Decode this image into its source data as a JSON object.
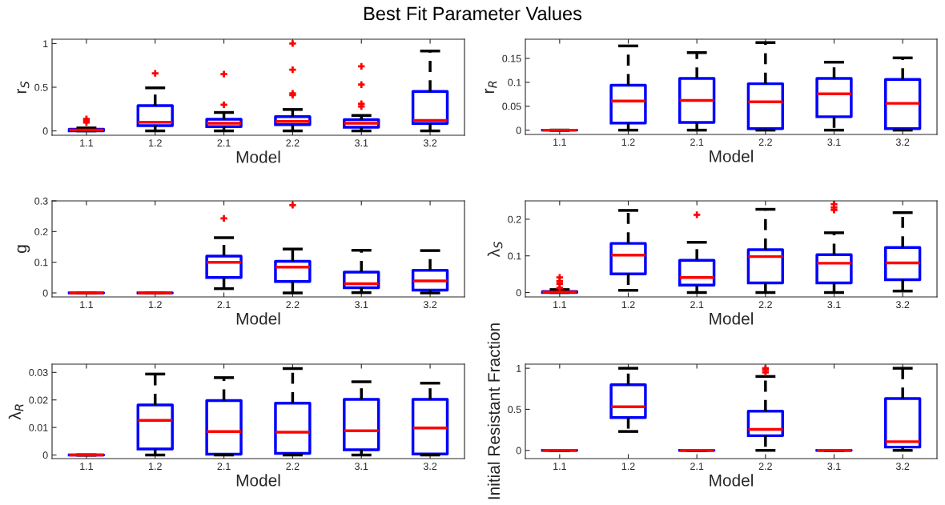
{
  "chart_data": [
    {
      "type": "box",
      "title": "Best Fit Parameter Values",
      "xlabel": "Model",
      "ylabel": "r$_{S}$",
      "categories": [
        "1.1",
        "1.2",
        "2.1",
        "2.2",
        "3.1",
        "3.2"
      ],
      "ylim": [
        -0.05,
        1.05
      ],
      "yticks": [
        0,
        0.5,
        1
      ],
      "boxes": [
        {
          "low": 0,
          "q1": 0,
          "median": 0.01,
          "q3": 0.02,
          "high": 0.034,
          "outliers": [
            0.095,
            0.116,
            0.136
          ]
        },
        {
          "low": 0,
          "q1": 0.061,
          "median": 0.099,
          "q3": 0.289,
          "high": 0.493,
          "outliers": [
            0.66
          ]
        },
        {
          "low": 0,
          "q1": 0.048,
          "median": 0.088,
          "q3": 0.133,
          "high": 0.211,
          "outliers": [
            0.3,
            0.65
          ]
        },
        {
          "low": 0,
          "q1": 0.071,
          "median": 0.109,
          "q3": 0.163,
          "high": 0.245,
          "outliers": [
            0.41,
            0.43,
            0.7,
            1.0
          ]
        },
        {
          "low": 0,
          "q1": 0.041,
          "median": 0.088,
          "q3": 0.129,
          "high": 0.177,
          "outliers": [
            0.28,
            0.31,
            0.53,
            0.74
          ]
        },
        {
          "low": 0,
          "q1": 0.085,
          "median": 0.119,
          "q3": 0.452,
          "high": 0.915
        }
      ]
    },
    {
      "type": "box",
      "xlabel": "Model",
      "ylabel": "r$_{R}$",
      "categories": [
        "1.1",
        "1.2",
        "2.1",
        "2.2",
        "3.1",
        "3.2"
      ],
      "ylim": [
        -0.009,
        0.19
      ],
      "yticks": [
        0,
        0.05,
        0.1,
        0.15
      ],
      "boxes": [
        {
          "low": 0,
          "q1": 0,
          "median": 0,
          "q3": 0,
          "high": 0
        },
        {
          "low": 0,
          "q1": 0.015,
          "median": 0.061,
          "q3": 0.094,
          "high": 0.176
        },
        {
          "low": 0,
          "q1": 0.016,
          "median": 0.062,
          "q3": 0.108,
          "high": 0.162
        },
        {
          "low": 0,
          "q1": 0.003,
          "median": 0.059,
          "q3": 0.097,
          "high": 0.183
        },
        {
          "low": 0,
          "q1": 0.028,
          "median": 0.076,
          "q3": 0.108,
          "high": 0.142
        },
        {
          "low": 0,
          "q1": 0.003,
          "median": 0.056,
          "q3": 0.106,
          "high": 0.151
        }
      ]
    },
    {
      "type": "box",
      "xlabel": "Model",
      "ylabel": "g",
      "categories": [
        "1.1",
        "1.2",
        "2.1",
        "2.2",
        "3.1",
        "3.2"
      ],
      "ylim": [
        -0.013,
        0.3
      ],
      "yticks": [
        0,
        0.1,
        0.2,
        0.3
      ],
      "boxes": [
        {
          "low": 0,
          "q1": 0,
          "median": 0,
          "q3": 0,
          "high": 0
        },
        {
          "low": 0,
          "q1": 0,
          "median": 0,
          "q3": 0,
          "high": 0
        },
        {
          "low": 0.014,
          "q1": 0.05,
          "median": 0.1,
          "q3": 0.12,
          "high": 0.18,
          "outliers": [
            0.243
          ]
        },
        {
          "low": 0,
          "q1": 0.037,
          "median": 0.084,
          "q3": 0.103,
          "high": 0.143,
          "outliers": [
            0.286
          ]
        },
        {
          "low": 0.001,
          "q1": 0.017,
          "median": 0.03,
          "q3": 0.068,
          "high": 0.139
        },
        {
          "low": 0,
          "q1": 0.009,
          "median": 0.039,
          "q3": 0.074,
          "high": 0.138
        }
      ]
    },
    {
      "type": "box",
      "xlabel": "Model",
      "ylabel": "λ$_{S}$",
      "categories": [
        "1.1",
        "1.2",
        "2.1",
        "2.2",
        "3.1",
        "3.2"
      ],
      "ylim": [
        -0.012,
        0.25
      ],
      "yticks": [
        0,
        0.1,
        0.2
      ],
      "boxes": [
        {
          "low": 0,
          "q1": 0,
          "median": 0.001,
          "q3": 0.003,
          "high": 0.008,
          "outliers": [
            0.013,
            0.024,
            0.031,
            0.041
          ]
        },
        {
          "low": 0.006,
          "q1": 0.051,
          "median": 0.102,
          "q3": 0.134,
          "high": 0.224
        },
        {
          "low": 0,
          "q1": 0.02,
          "median": 0.041,
          "q3": 0.088,
          "high": 0.137,
          "outliers": [
            0.212
          ]
        },
        {
          "low": 0,
          "q1": 0.026,
          "median": 0.098,
          "q3": 0.117,
          "high": 0.227
        },
        {
          "low": 0,
          "q1": 0.026,
          "median": 0.08,
          "q3": 0.103,
          "high": 0.163,
          "outliers": [
            0.225,
            0.232,
            0.241
          ]
        },
        {
          "low": 0.004,
          "q1": 0.035,
          "median": 0.081,
          "q3": 0.123,
          "high": 0.218
        }
      ]
    },
    {
      "type": "box",
      "xlabel": "Model",
      "ylabel": "λ$_{R}$",
      "categories": [
        "1.1",
        "1.2",
        "2.1",
        "2.2",
        "3.1",
        "3.2"
      ],
      "ylim": [
        -0.0013,
        0.033
      ],
      "yticks": [
        0,
        0.01,
        0.02,
        0.03
      ],
      "boxes": [
        {
          "low": 0,
          "q1": 0,
          "median": 0,
          "q3": 0,
          "high": 0
        },
        {
          "low": 0,
          "q1": 0.0022,
          "median": 0.0126,
          "q3": 0.0182,
          "high": 0.0294
        },
        {
          "low": 0,
          "q1": 0.0003,
          "median": 0.0085,
          "q3": 0.0198,
          "high": 0.0281
        },
        {
          "low": 0,
          "q1": 0.0006,
          "median": 0.0083,
          "q3": 0.0188,
          "high": 0.0314
        },
        {
          "low": 0,
          "q1": 0.0019,
          "median": 0.0088,
          "q3": 0.0202,
          "high": 0.0266
        },
        {
          "low": 0,
          "q1": 0.0004,
          "median": 0.0098,
          "q3": 0.0202,
          "high": 0.0261
        }
      ]
    },
    {
      "type": "box",
      "xlabel": "Model",
      "ylabel": "Initial Resistant Fraction",
      "categories": [
        "1.1",
        "1.2",
        "2.1",
        "2.2",
        "3.1",
        "3.2"
      ],
      "ylim": [
        -0.1,
        1.05
      ],
      "yticks": [
        0,
        0.5,
        1
      ],
      "boxes": [
        {
          "low": 0,
          "q1": 0,
          "median": 0,
          "q3": 0,
          "high": 0
        },
        {
          "low": 0.23,
          "q1": 0.4,
          "median": 0.53,
          "q3": 0.8,
          "high": 1.0
        },
        {
          "low": 0,
          "q1": 0,
          "median": 0,
          "q3": 0,
          "high": 0
        },
        {
          "low": 0,
          "q1": 0.179,
          "median": 0.255,
          "q3": 0.478,
          "high": 0.9,
          "outliers": [
            0.95,
            0.98,
            1.0
          ]
        },
        {
          "low": 0,
          "q1": 0,
          "median": 0,
          "q3": 0,
          "high": 0
        },
        {
          "low": 0,
          "q1": 0.04,
          "median": 0.106,
          "q3": 0.63,
          "high": 1.0
        }
      ]
    }
  ]
}
